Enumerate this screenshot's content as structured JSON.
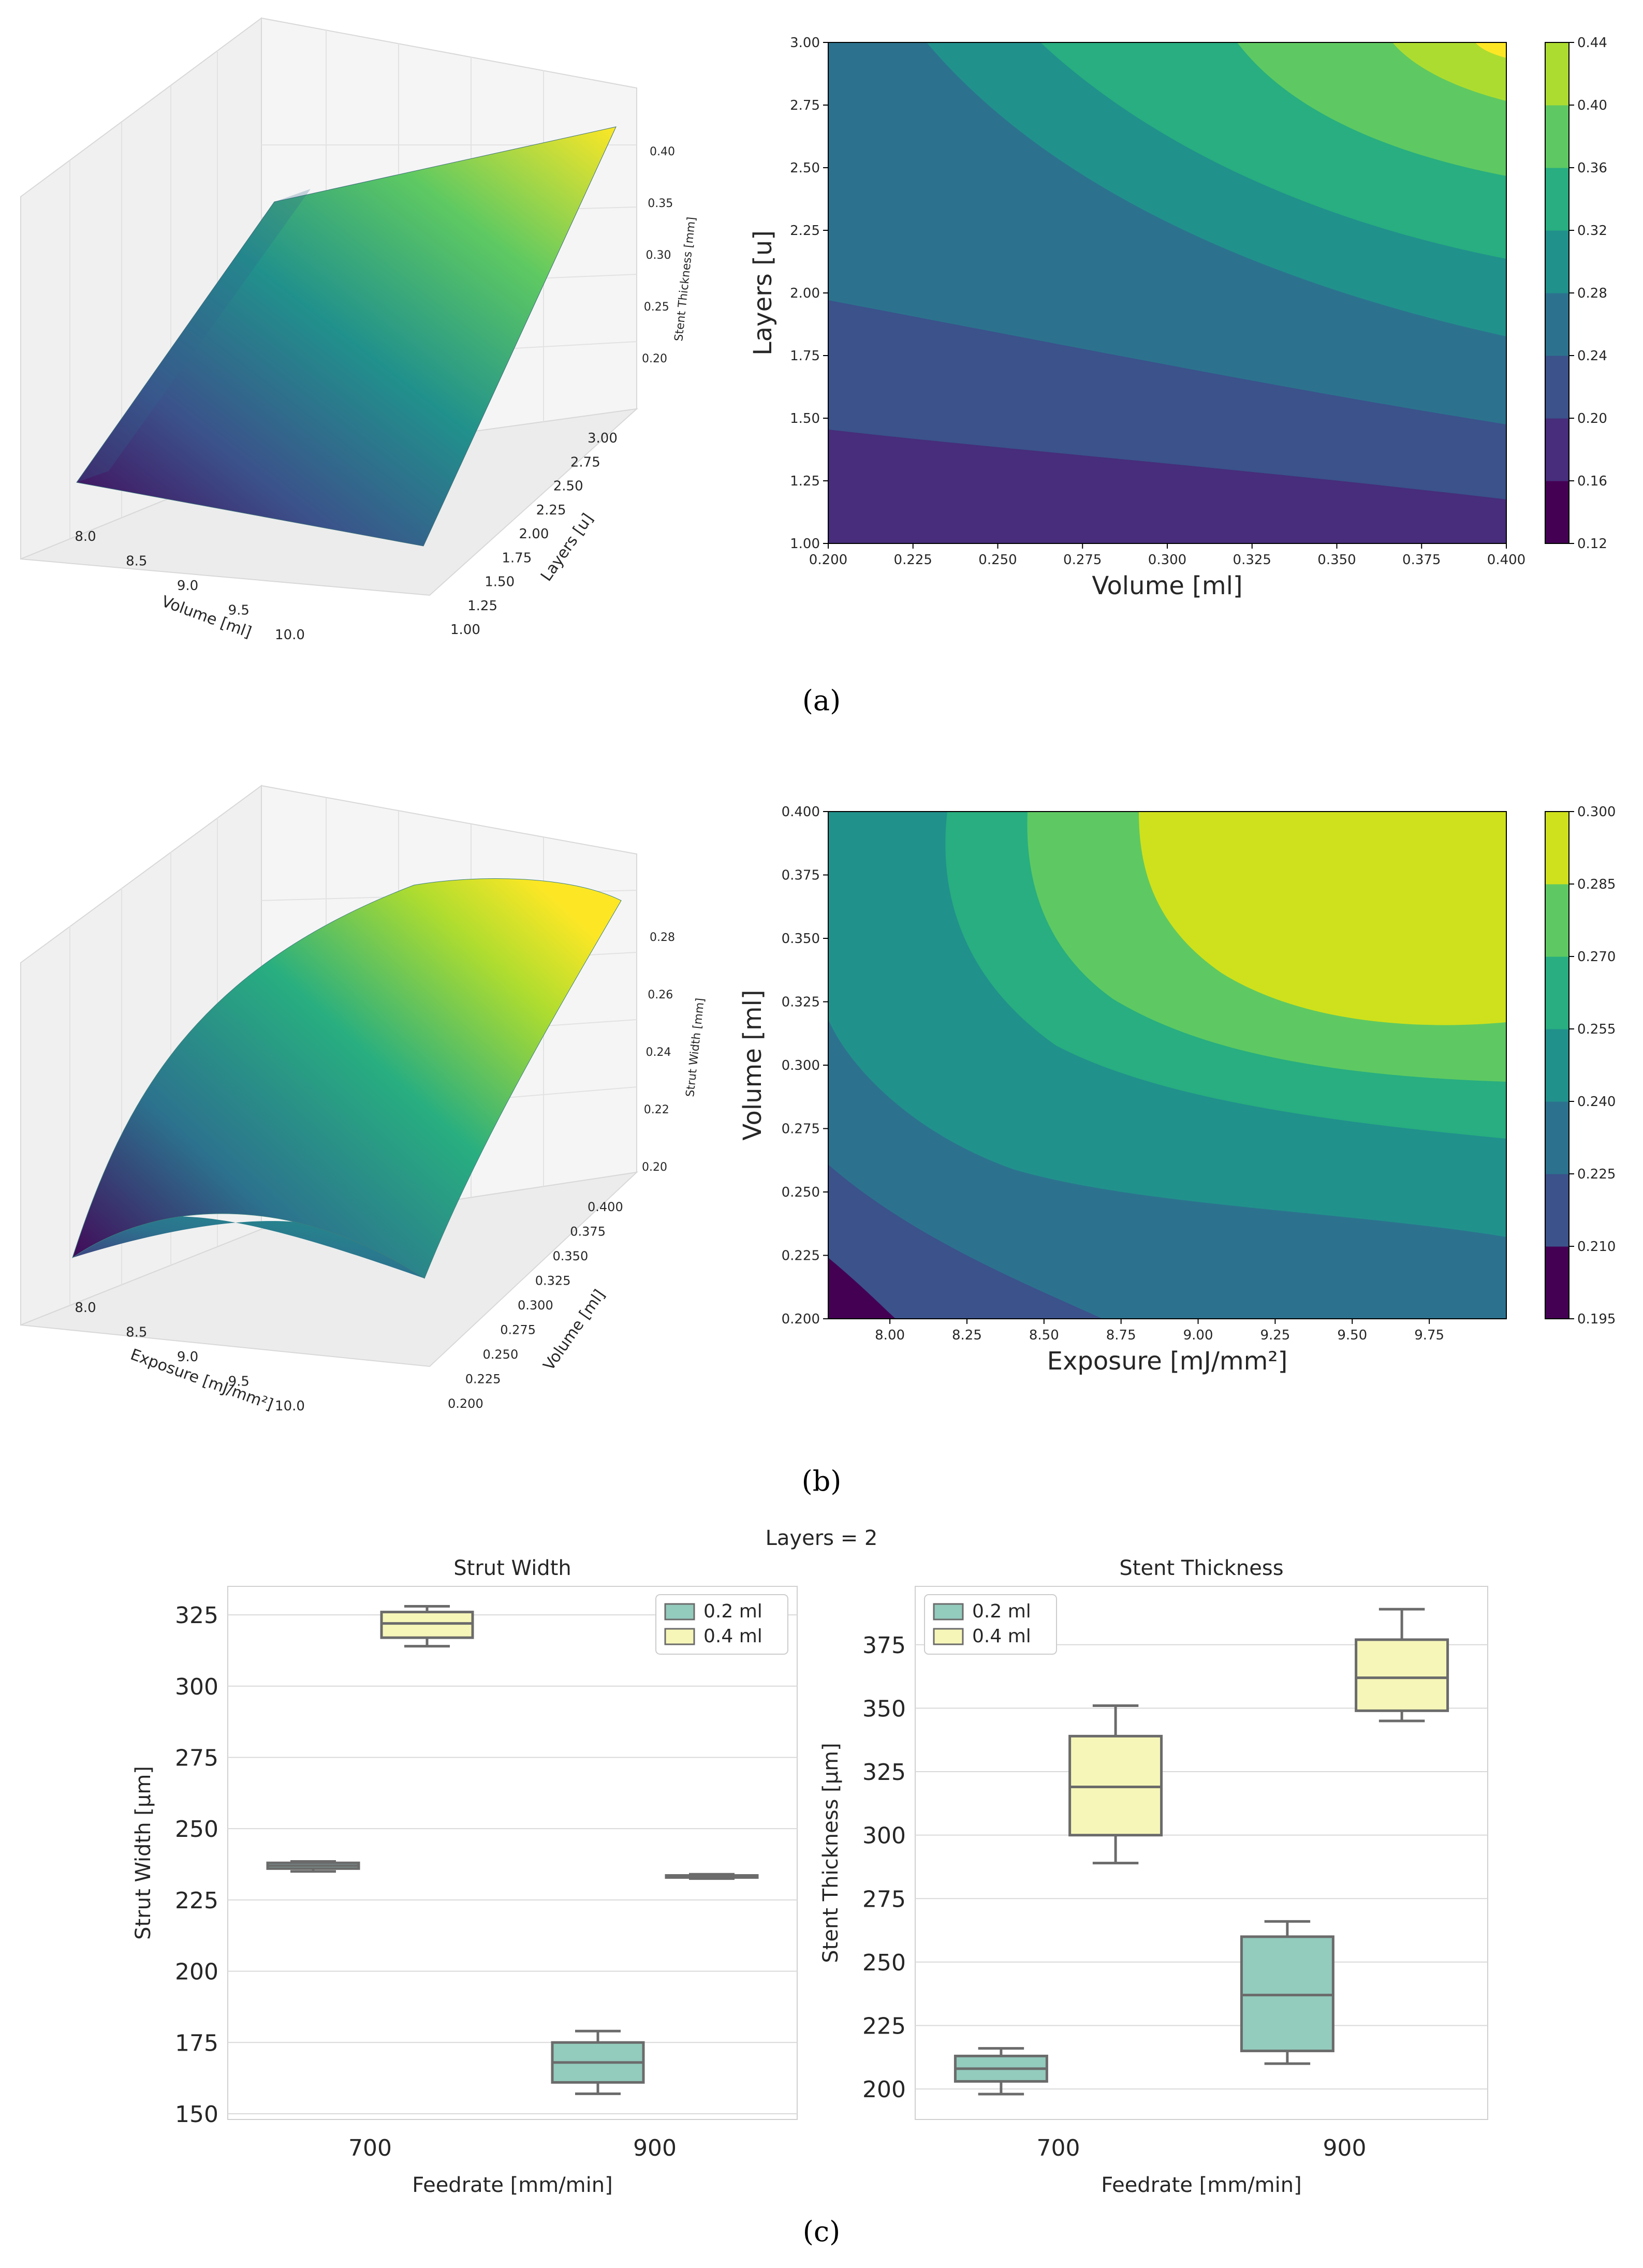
{
  "captions": {
    "a": "(a)",
    "b": "(b)",
    "c": "(c)"
  },
  "colormap": [
    "#440154",
    "#472d7b",
    "#3b528b",
    "#2c728e",
    "#21918c",
    "#28ae80",
    "#5ec962",
    "#addc30",
    "#fde725"
  ],
  "chart_data": [
    {
      "id": "a-surface",
      "type": "surface3d",
      "xlabel": "Volume [ml]",
      "ylabel": "Layers [u]",
      "zlabel": "Stent Thickness [mm]",
      "x_ticks": [
        "8.0",
        "8.5",
        "9.0",
        "9.5",
        "10.0"
      ],
      "y_ticks": [
        "1.00",
        "1.25",
        "1.50",
        "1.75",
        "2.00",
        "2.25",
        "2.50",
        "2.75",
        "3.00"
      ],
      "z_ticks": [
        "0.20",
        "0.25",
        "0.30",
        "0.35",
        "0.40"
      ]
    },
    {
      "id": "a-contour",
      "type": "contour",
      "xlabel": "Volume [ml]",
      "ylabel": "Layers [u]",
      "x_ticks": [
        "0.200",
        "0.225",
        "0.250",
        "0.275",
        "0.300",
        "0.325",
        "0.350",
        "0.375",
        "0.400"
      ],
      "y_ticks": [
        "1.00",
        "1.25",
        "1.50",
        "1.75",
        "2.00",
        "2.25",
        "2.50",
        "2.75",
        "3.00"
      ],
      "levels": [
        "0.12",
        "0.16",
        "0.20",
        "0.24",
        "0.28",
        "0.32",
        "0.36",
        "0.40",
        "0.44"
      ],
      "xlim": [
        0.2,
        0.4
      ],
      "ylim": [
        1.0,
        3.0
      ]
    },
    {
      "id": "b-surface",
      "type": "surface3d",
      "xlabel": "Exposure [mJ/mm²]",
      "ylabel": "Volume [ml]",
      "zlabel": "Strut Width [mm]",
      "x_ticks": [
        "8.0",
        "8.5",
        "9.0",
        "9.5",
        "10.0"
      ],
      "y_ticks": [
        "0.200",
        "0.225",
        "0.250",
        "0.275",
        "0.300",
        "0.325",
        "0.350",
        "0.375",
        "0.400"
      ],
      "z_ticks": [
        "0.20",
        "0.22",
        "0.24",
        "0.26",
        "0.28"
      ]
    },
    {
      "id": "b-contour",
      "type": "contour",
      "xlabel": "Exposure [mJ/mm²]",
      "ylabel": "Volume [ml]",
      "x_ticks": [
        "8.00",
        "8.25",
        "8.50",
        "8.75",
        "9.00",
        "9.25",
        "9.50",
        "9.75"
      ],
      "y_ticks": [
        "0.200",
        "0.225",
        "0.250",
        "0.275",
        "0.300",
        "0.325",
        "0.350",
        "0.375",
        "0.400"
      ],
      "levels": [
        "0.195",
        "0.210",
        "0.225",
        "0.240",
        "0.255",
        "0.270",
        "0.285",
        "0.300"
      ],
      "xlim": [
        7.8,
        10.0
      ],
      "ylim": [
        0.2,
        0.4
      ]
    },
    {
      "id": "c-strut-width",
      "type": "box",
      "suptitle": "Layers = 2",
      "title": "Strut Width",
      "xlabel": "Feedrate [mm/min]",
      "ylabel": "Strut Width [µm]",
      "categories": [
        "700",
        "900"
      ],
      "ylim": [
        148,
        335
      ],
      "y_ticks": [
        150,
        175,
        200,
        225,
        250,
        275,
        300,
        325
      ],
      "legend_position": "top-right",
      "series": [
        {
          "name": "0.2 ml",
          "color": "#93cbbd",
          "boxes": [
            {
              "min": 235,
              "q1": 236,
              "median": 237,
              "q3": 238,
              "max": 238.5
            },
            {
              "min": 157,
              "q1": 161,
              "median": 168,
              "q3": 175,
              "max": 179
            }
          ]
        },
        {
          "name": "0.4 ml",
          "color": "#f6f6b8",
          "boxes": [
            {
              "min": 314,
              "q1": 317,
              "median": 322,
              "q3": 326,
              "max": 328
            },
            {
              "min": 232.5,
              "q1": 233,
              "median": 233.3,
              "q3": 233.6,
              "max": 234
            }
          ]
        }
      ]
    },
    {
      "id": "c-stent-thickness",
      "type": "box",
      "title": "Stent Thickness",
      "xlabel": "Feedrate [mm/min]",
      "ylabel": "Stent Thickness [µm]",
      "categories": [
        "700",
        "900"
      ],
      "ylim": [
        188,
        398
      ],
      "y_ticks": [
        200,
        225,
        250,
        275,
        300,
        325,
        350,
        375
      ],
      "legend_position": "top-left",
      "series": [
        {
          "name": "0.2 ml",
          "color": "#93cbbd",
          "boxes": [
            {
              "min": 198,
              "q1": 203,
              "median": 208,
              "q3": 213,
              "max": 216
            },
            {
              "min": 210,
              "q1": 215,
              "median": 237,
              "q3": 260,
              "max": 266
            }
          ]
        },
        {
          "name": "0.4 ml",
          "color": "#f6f6b8",
          "boxes": [
            {
              "min": 289,
              "q1": 300,
              "median": 319,
              "q3": 339,
              "max": 351
            },
            {
              "min": 345,
              "q1": 349,
              "median": 362,
              "q3": 377,
              "max": 389
            }
          ]
        }
      ]
    }
  ]
}
